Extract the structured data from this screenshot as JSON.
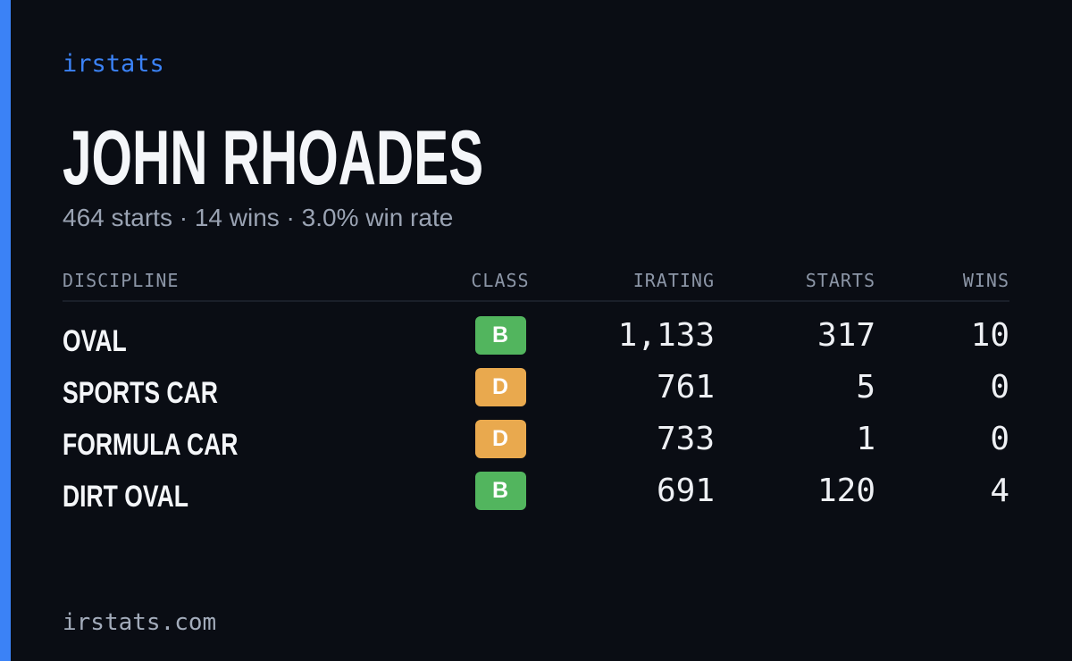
{
  "brand": "irstats",
  "driver": {
    "name": "JOHN RHOADES",
    "summary": "464 starts · 14 wins · 3.0% win rate"
  },
  "table": {
    "columns": [
      "DISCIPLINE",
      "CLASS",
      "IRATING",
      "STARTS",
      "WINS"
    ],
    "rows": [
      [
        "OVAL",
        "B",
        "1,133",
        "317",
        "10"
      ],
      [
        "SPORTS CAR",
        "D",
        "761",
        "5",
        "0"
      ],
      [
        "FORMULA CAR",
        "D",
        "733",
        "1",
        "0"
      ],
      [
        "DIRT OVAL",
        "B",
        "691",
        "120",
        "4"
      ]
    ],
    "class_colors": {
      "B": "#52b55e",
      "D": "#e9a94e"
    }
  },
  "footer": "irstats.com"
}
